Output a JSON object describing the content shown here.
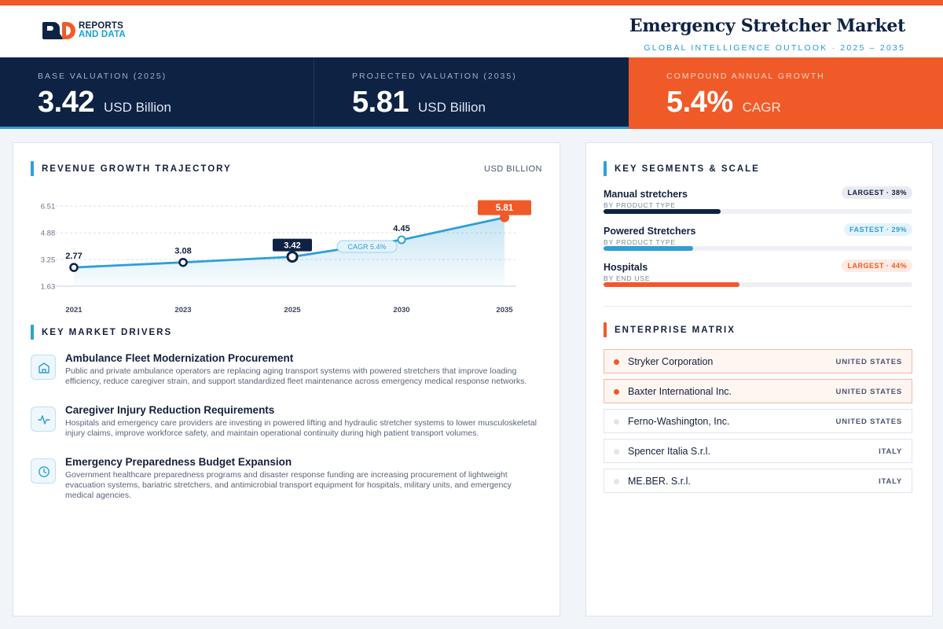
{
  "brand": {
    "line1": "REPORTS",
    "line2": "AND DATA"
  },
  "header": {
    "title": "Emergency Stretcher Market",
    "subtitle": "GLOBAL INTELLIGENCE OUTLOOK  ·  2025 – 2035"
  },
  "kpis": [
    {
      "label": "BASE VALUATION (2025)",
      "value": "3.42",
      "unit": "USD Billion"
    },
    {
      "label": "PROJECTED VALUATION (2035)",
      "value": "5.81",
      "unit": "USD Billion"
    },
    {
      "label": "COMPOUND ANNUAL GROWTH",
      "value": "5.4%",
      "unit": "CAGR"
    }
  ],
  "revenue": {
    "section_title": "REVENUE GROWTH TRAJECTORY",
    "unit_tag": "USD BILLION",
    "cagr_tag": "CAGR 5.4%"
  },
  "chart_data": {
    "type": "area",
    "categories": [
      "2021",
      "2023",
      "2025",
      "2030",
      "2035"
    ],
    "values": [
      2.77,
      3.08,
      3.42,
      4.45,
      5.81
    ],
    "value_labels": [
      "2.77",
      "3.08",
      "3.42",
      "4.45",
      "5.81"
    ],
    "y_ticks": [
      "6.51",
      "4.88",
      "3.25",
      "1.63"
    ],
    "ylim": [
      1.63,
      6.51
    ],
    "highlight": {
      "base_index": 2,
      "final_index": 4
    },
    "annotation": "CAGR 5.4%",
    "colors": {
      "line": "#2f9fd6",
      "base": "#0e2244",
      "final": "#f05a28"
    },
    "grid": true
  },
  "drivers": {
    "section_title": "KEY MARKET DRIVERS",
    "items": [
      {
        "icon": "building-icon",
        "title": "Ambulance Fleet Modernization Procurement",
        "text": "Public and private ambulance operators are replacing aging transport systems with powered stretchers that improve loading efficiency, reduce caregiver strain, and support standardized fleet maintenance across emergency medical response networks."
      },
      {
        "icon": "pulse-icon",
        "title": "Caregiver Injury Reduction Requirements",
        "text": "Hospitals and emergency care providers are investing in powered lifting and hydraulic stretcher systems to lower musculoskeletal injury claims, improve workforce safety, and maintain operational continuity during high patient transport volumes."
      },
      {
        "icon": "clock-icon",
        "title": "Emergency Preparedness Budget Expansion",
        "text": "Government healthcare preparedness programs and disaster response funding are increasing procurement of lightweight evacuation systems, bariatric stretchers, and antimicrobial transport equipment for hospitals, military units, and emergency medical agencies."
      }
    ]
  },
  "segments": {
    "section_title": "KEY SEGMENTS & SCALE",
    "items": [
      {
        "name": "Manual stretchers",
        "sub": "BY PRODUCT TYPE",
        "badge": "LARGEST · 38%",
        "share": 0.38,
        "color": "#0e2244",
        "badge_style": "navy"
      },
      {
        "name": "Powered Stretchers",
        "sub": "BY PRODUCT TYPE",
        "badge": "FASTEST · 29%",
        "share": 0.29,
        "color": "#2f9fd6",
        "badge_style": "blue"
      },
      {
        "name": "Hospitals",
        "sub": "BY END USE",
        "badge": "LARGEST · 44%",
        "share": 0.44,
        "color": "#f05a28",
        "badge_style": "orange"
      }
    ]
  },
  "enterprise": {
    "section_title": "ENTERPRISE MATRIX",
    "items": [
      {
        "name": "Stryker Corporation",
        "country": "UNITED STATES",
        "highlight": true
      },
      {
        "name": "Baxter International Inc.",
        "country": "UNITED STATES",
        "highlight": true
      },
      {
        "name": "Ferno-Washington, Inc.",
        "country": "UNITED STATES",
        "highlight": false
      },
      {
        "name": "Spencer Italia S.r.l.",
        "country": "ITALY",
        "highlight": false
      },
      {
        "name": "ME.BER. S.r.l.",
        "country": "ITALY",
        "highlight": false
      }
    ]
  }
}
